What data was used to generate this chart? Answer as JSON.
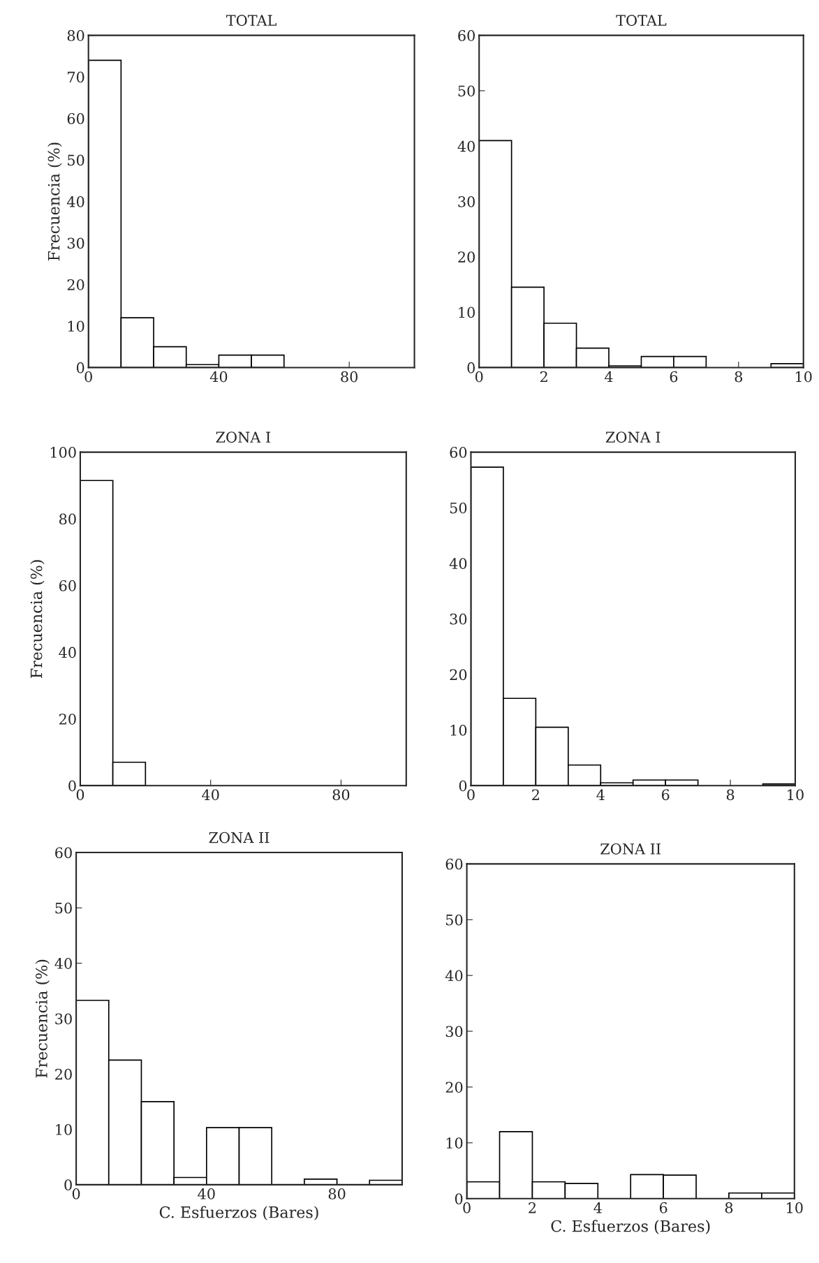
{
  "chart_data": [
    {
      "type": "histogram",
      "title": "TOTAL",
      "ylabel": "Frecuencia (%)",
      "bins": [
        0,
        10,
        20,
        30,
        40,
        50,
        60,
        70,
        80,
        90,
        100
      ],
      "values": [
        74,
        12,
        5,
        0.7,
        3,
        3,
        0,
        0,
        0,
        0
      ],
      "color": "#ffffff",
      "xlim": [
        0,
        100
      ],
      "xticks": [
        0,
        40,
        80
      ],
      "ylim": [
        0,
        80
      ],
      "yticks": [
        0,
        10,
        20,
        30,
        40,
        50,
        60,
        70,
        80
      ],
      "grid": false
    },
    {
      "type": "histogram",
      "title": "TOTAL",
      "bins": [
        0,
        1,
        2,
        3,
        4,
        5,
        6,
        7,
        8,
        9,
        10
      ],
      "values": [
        41,
        14.5,
        8,
        3.5,
        0.3,
        2,
        2,
        0,
        0,
        0.7
      ],
      "color": "#ffffff",
      "xlim": [
        0,
        10
      ],
      "xticks": [
        0,
        2,
        4,
        6,
        8,
        10
      ],
      "ylim": [
        0,
        60
      ],
      "yticks": [
        0,
        10,
        20,
        30,
        40,
        50,
        60
      ],
      "grid": false
    },
    {
      "type": "histogram",
      "title": "ZONA I",
      "ylabel": "Frecuencia (%)",
      "bins": [
        0,
        10,
        20,
        30,
        40,
        50,
        60,
        70,
        80,
        90,
        100
      ],
      "values": [
        91.5,
        7,
        0,
        0,
        0,
        0,
        0,
        0,
        0,
        0
      ],
      "color": "#ffffff",
      "xlim": [
        0,
        100
      ],
      "xticks": [
        0,
        40,
        80
      ],
      "ylim": [
        0,
        100
      ],
      "yticks": [
        0,
        20,
        40,
        60,
        80,
        100
      ],
      "grid": false
    },
    {
      "type": "histogram",
      "title": "ZONA I",
      "bins": [
        0,
        1,
        2,
        3,
        4,
        5,
        6,
        7,
        8,
        9,
        10
      ],
      "values": [
        57.3,
        15.7,
        10.5,
        3.7,
        0.5,
        1,
        1,
        0,
        0,
        0.3
      ],
      "color": "#ffffff",
      "xlim": [
        0,
        10
      ],
      "xticks": [
        0,
        2,
        4,
        6,
        8,
        10
      ],
      "ylim": [
        0,
        60
      ],
      "yticks": [
        0,
        10,
        20,
        30,
        40,
        50,
        60
      ],
      "grid": false
    },
    {
      "type": "histogram",
      "title": "ZONA II",
      "ylabel": "Frecuencia (%)",
      "xlabel": "C. Esfuerzos (Bares)",
      "bins": [
        0,
        10,
        20,
        30,
        40,
        50,
        60,
        70,
        80,
        90,
        100
      ],
      "values": [
        33.3,
        22.5,
        15,
        1.3,
        10.3,
        10.3,
        0,
        1,
        0,
        0.8
      ],
      "color": "#ffffff",
      "xlim": [
        0,
        100
      ],
      "xticks": [
        0,
        40,
        80
      ],
      "ylim": [
        0,
        60
      ],
      "yticks": [
        0,
        10,
        20,
        30,
        40,
        50,
        60
      ],
      "grid": false
    },
    {
      "type": "histogram",
      "title": "ZONA II",
      "xlabel": "C. Esfuerzos (Bares)",
      "bins": [
        0,
        1,
        2,
        3,
        4,
        5,
        6,
        7,
        8,
        9,
        10
      ],
      "values": [
        3,
        12,
        3,
        2.7,
        0,
        4.3,
        4.2,
        0,
        1,
        1
      ],
      "color": "#ffffff",
      "xlim": [
        0,
        10
      ],
      "xticks": [
        0,
        2,
        4,
        6,
        8,
        10
      ],
      "ylim": [
        0,
        60
      ],
      "yticks": [
        0,
        10,
        20,
        30,
        40,
        50,
        60
      ],
      "grid": false
    }
  ]
}
